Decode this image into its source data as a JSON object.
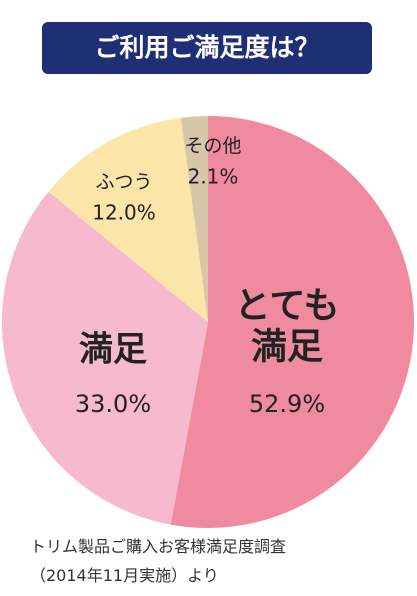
{
  "chart_data": {
    "type": "pie",
    "title": "ご利用ご満足度は？",
    "categories": [
      "とても満足",
      "満足",
      "ふつう",
      "その他"
    ],
    "values": [
      52.9,
      33.0,
      12.0,
      2.1
    ],
    "value_labels": [
      "52.9%",
      "33.0%",
      "12.0%",
      "2.1%"
    ],
    "colors": [
      "#f08b9f",
      "#f6b9cd",
      "#fbe5a8",
      "#d8c6a8"
    ],
    "note": [
      "トリム製品ご購入お客様満足度調査",
      "（2014年11月実施）より"
    ]
  }
}
